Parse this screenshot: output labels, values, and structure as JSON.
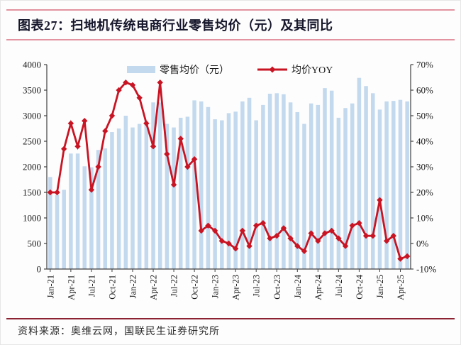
{
  "title": "图表27：扫地机传统电商行业零售均价（元）及其同比",
  "footer": {
    "text": "资料来源：奥维云网，国联民生证券研究所"
  },
  "legend": {
    "bar_label": "零售均价（元）",
    "line_label": "均价YOY"
  },
  "colors": {
    "bar": "#c3d9ee",
    "line": "#c81423",
    "accent_rule": "#e2939f",
    "footer_rule": "#8c2332",
    "title_text": "#16162c",
    "axis": "#404040",
    "tick_text": "#1a1a1a"
  },
  "chart_data": {
    "type": "bar",
    "combo": "bar+line",
    "title": "扫地机传统电商行业零售均价（元）及其同比",
    "categories": [
      "Jan-21",
      "Feb-21",
      "Mar-21",
      "Apr-21",
      "May-21",
      "Jun-21",
      "Jul-21",
      "Aug-21",
      "Sep-21",
      "Oct-21",
      "Nov-21",
      "Dec-21",
      "Jan-22",
      "Feb-22",
      "Mar-22",
      "Apr-22",
      "May-22",
      "Jun-22",
      "Jul-22",
      "Aug-22",
      "Sep-22",
      "Oct-22",
      "Nov-22",
      "Dec-22",
      "Jan-23",
      "Feb-23",
      "Mar-23",
      "Apr-23",
      "May-23",
      "Jun-23",
      "Jul-23",
      "Aug-23",
      "Sep-23",
      "Oct-23",
      "Nov-23",
      "Dec-23",
      "Jan-24",
      "Feb-24",
      "Mar-24",
      "Apr-24",
      "May-24",
      "Jun-24",
      "Jul-24",
      "Aug-24",
      "Sep-24",
      "Oct-24",
      "Nov-24",
      "Dec-24",
      "Jan-25",
      "Feb-25",
      "Mar-25",
      "Apr-25",
      "May-25"
    ],
    "x_tick_labels": [
      "Jan-21",
      "Apr-21",
      "Jul-21",
      "Oct-21",
      "Jan-22",
      "Apr-22",
      "Jul-22",
      "Oct-22",
      "Jan-23",
      "Apr-23",
      "Jul-23",
      "Oct-23",
      "Jan-24",
      "Apr-24",
      "Jul-24",
      "Oct-24",
      "Jan-25",
      "Apr-25"
    ],
    "series": [
      {
        "name": "零售均价（元）",
        "type": "bar",
        "axis": "left",
        "values": [
          1800,
          1450,
          1550,
          2260,
          2260,
          2010,
          1990,
          2330,
          2360,
          2680,
          2750,
          3000,
          2770,
          2840,
          2900,
          3260,
          3260,
          2840,
          2770,
          2960,
          2980,
          3300,
          3280,
          3170,
          2930,
          2910,
          3050,
          3080,
          3280,
          3350,
          2910,
          3210,
          3430,
          3440,
          3420,
          3260,
          3070,
          2840,
          3240,
          3210,
          3540,
          3490,
          2960,
          3150,
          3240,
          3740,
          3580,
          3440,
          3120,
          3280,
          3290,
          3310,
          3280
        ]
      },
      {
        "name": "均价YOY",
        "type": "line",
        "axis": "right",
        "values": [
          20,
          20,
          37,
          47,
          38,
          48,
          21,
          30,
          44,
          50,
          60,
          63,
          62,
          57,
          47,
          38,
          63,
          35,
          23,
          41,
          30,
          33,
          5,
          7,
          5,
          1,
          0,
          -2,
          5,
          -1,
          7,
          8,
          2,
          3,
          6,
          2,
          -1,
          -3,
          4,
          1,
          4,
          5,
          2,
          -1,
          7,
          8,
          3,
          3,
          17,
          1,
          3,
          -6,
          -5
        ]
      }
    ],
    "left_axis": {
      "min": 0,
      "max": 4000,
      "step": 500,
      "tick_labels": [
        "4000",
        "3500",
        "3000",
        "2500",
        "2000",
        "1500",
        "1000",
        "500",
        "0"
      ]
    },
    "right_axis": {
      "min": -10,
      "max": 70,
      "step": 10,
      "tick_labels": [
        "70%",
        "60%",
        "50%",
        "40%",
        "30%",
        "20%",
        "10%",
        "0%",
        "-10%"
      ]
    },
    "grid": false,
    "legend_position": "top-center"
  }
}
